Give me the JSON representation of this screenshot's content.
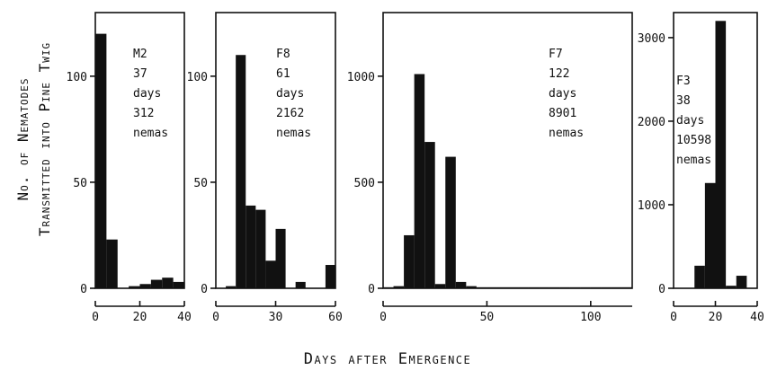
{
  "ylabel_lines": [
    "No. of Nematodes",
    "Transmitted into Pine Twig"
  ],
  "xlabel": "Days after Emergence",
  "chart_data": [
    {
      "type": "bar",
      "annotation": [
        "M2",
        "37",
        "days",
        "312",
        "nemas"
      ],
      "bin_width": 5,
      "bins": [
        0,
        5,
        10,
        15,
        20,
        25,
        30,
        35
      ],
      "values": [
        120,
        23,
        0,
        1,
        2,
        4,
        5,
        3
      ],
      "xlim": [
        0,
        40
      ],
      "ylim": [
        0,
        130
      ],
      "xticks": [
        0,
        20,
        40
      ],
      "yticks": [
        0,
        50,
        100
      ],
      "ytick_labels": [
        "0",
        "50",
        "100"
      ]
    },
    {
      "type": "bar",
      "annotation": [
        "F8",
        "61",
        "days",
        "2162",
        "nemas"
      ],
      "bin_width": 5,
      "bins": [
        0,
        5,
        10,
        15,
        20,
        25,
        30,
        35,
        40,
        45,
        50,
        55
      ],
      "values": [
        0,
        1,
        110,
        39,
        37,
        13,
        28,
        0,
        3,
        0,
        0,
        11
      ],
      "xlim": [
        0,
        60
      ],
      "ylim": [
        0,
        130
      ],
      "xticks": [
        0,
        30,
        60
      ],
      "yticks": [
        0,
        50,
        100
      ],
      "ytick_labels": [
        "0",
        "50",
        "100"
      ]
    },
    {
      "type": "bar",
      "annotation": [
        "F7",
        "122",
        "days",
        "8901",
        "nemas"
      ],
      "bin_width": 5,
      "bins": [
        0,
        5,
        10,
        15,
        20,
        25,
        30,
        35,
        40,
        45,
        50,
        55,
        60,
        65,
        70,
        75,
        80,
        85,
        90,
        95,
        100,
        105,
        110,
        115
      ],
      "values": [
        5,
        10,
        250,
        1010,
        690,
        20,
        620,
        30,
        10,
        5,
        5,
        5,
        5,
        5,
        5,
        5,
        5,
        5,
        5,
        5,
        5,
        5,
        5,
        5
      ],
      "xlim": [
        0,
        120
      ],
      "ylim": [
        0,
        1300
      ],
      "xticks": [
        0,
        50,
        100
      ],
      "yticks": [
        0,
        500,
        1000
      ],
      "ytick_labels": [
        "0",
        "500",
        "1000"
      ]
    },
    {
      "type": "bar",
      "annotation": [
        "F3",
        "38",
        "days",
        "10598",
        "nemas"
      ],
      "bin_width": 5,
      "bins": [
        0,
        5,
        10,
        15,
        20,
        25,
        30,
        35
      ],
      "values": [
        0,
        0,
        270,
        1260,
        3200,
        30,
        150,
        0
      ],
      "xlim": [
        0,
        40
      ],
      "ylim": [
        0,
        3300
      ],
      "xticks": [
        0,
        20,
        40
      ],
      "yticks": [
        0,
        1000,
        2000,
        3000
      ],
      "ytick_labels": [
        "0",
        "1000",
        "2000",
        "3000"
      ]
    }
  ]
}
